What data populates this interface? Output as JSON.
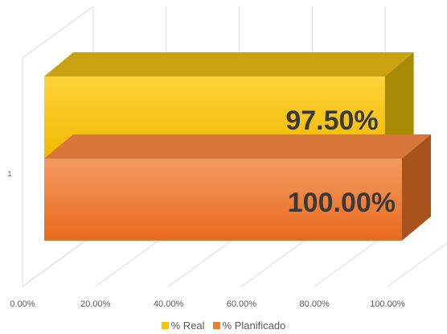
{
  "chart_data": {
    "type": "bar",
    "orientation": "horizontal",
    "style": "3d-clustered",
    "categories": [
      "1"
    ],
    "series": [
      {
        "name": "% Real",
        "values": [
          97.5
        ],
        "label": "97.50%",
        "color": "#FFC000"
      },
      {
        "name": "% Planificado",
        "values": [
          100.0
        ],
        "label": "100.00%",
        "color": "#ED7D31"
      }
    ],
    "x_ticks": [
      "0.00%",
      "20.00%",
      "40.00%",
      "60.00%",
      "80.00%",
      "100.00%"
    ],
    "xlim": [
      0,
      100
    ],
    "grid": true,
    "legend": "bottom",
    "title": "",
    "xlabel": "",
    "ylabel": ""
  }
}
